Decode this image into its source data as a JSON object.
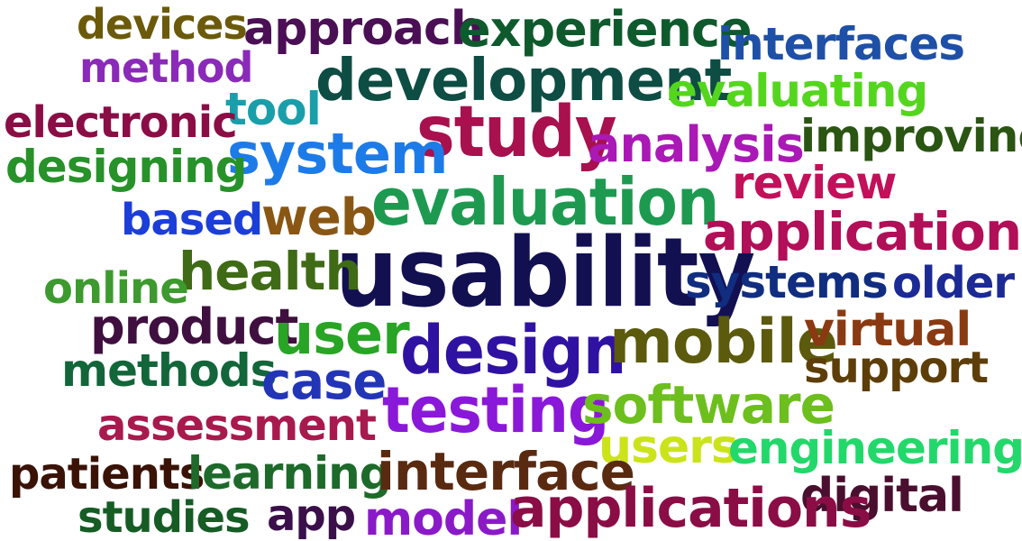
{
  "words": {
    "devices": {
      "text": "devices",
      "color": "#6b5a0a"
    },
    "approach": {
      "text": "approach",
      "color": "#4b0f55"
    },
    "experience": {
      "text": "experience",
      "color": "#0f5a2d"
    },
    "interfaces": {
      "text": "interfaces",
      "color": "#1e50a8"
    },
    "method": {
      "text": "method",
      "color": "#8a2ab8"
    },
    "development": {
      "text": "development",
      "color": "#0d4d43"
    },
    "evaluating": {
      "text": "evaluating",
      "color": "#55d61e"
    },
    "tool": {
      "text": "tool",
      "color": "#1a9faa"
    },
    "electronic": {
      "text": "electronic",
      "color": "#8a0d46"
    },
    "study": {
      "text": "study",
      "color": "#a8104e"
    },
    "analysis": {
      "text": "analysis",
      "color": "#aa18b6"
    },
    "improving": {
      "text": "improving",
      "color": "#2a5512"
    },
    "system": {
      "text": "system",
      "color": "#1d7be8"
    },
    "designing": {
      "text": "designing",
      "color": "#27922a"
    },
    "review": {
      "text": "review",
      "color": "#c2105a"
    },
    "evaluation": {
      "text": "evaluation",
      "color": "#1d9a50"
    },
    "based": {
      "text": "based",
      "color": "#1c3ed8"
    },
    "web": {
      "text": "web",
      "color": "#8a5614"
    },
    "application": {
      "text": "application",
      "color": "#b10f58"
    },
    "usability": {
      "text": "usability",
      "color": "#131052"
    },
    "health": {
      "text": "health",
      "color": "#3f6a16"
    },
    "online": {
      "text": "online",
      "color": "#3d9a2e"
    },
    "systems": {
      "text": "systems",
      "color": "#102d80"
    },
    "older": {
      "text": "older",
      "color": "#1b2a94"
    },
    "product": {
      "text": "product",
      "color": "#3f0f3f"
    },
    "user": {
      "text": "user",
      "color": "#28a525"
    },
    "design": {
      "text": "design",
      "color": "#3012a2"
    },
    "mobile": {
      "text": "mobile",
      "color": "#5c5a0c"
    },
    "virtual": {
      "text": "virtual",
      "color": "#8a3a12"
    },
    "methods": {
      "text": "methods",
      "color": "#12663a"
    },
    "case": {
      "text": "case",
      "color": "#2235b6"
    },
    "support": {
      "text": "support",
      "color": "#5e3e08"
    },
    "testing": {
      "text": "testing",
      "color": "#8a18d8"
    },
    "software": {
      "text": "software",
      "color": "#6cbf1c"
    },
    "assessment": {
      "text": "assessment",
      "color": "#a81a4e"
    },
    "users": {
      "text": "users",
      "color": "#cbe31a"
    },
    "engineering": {
      "text": "engineering",
      "color": "#22d86a"
    },
    "patients": {
      "text": "patients",
      "color": "#3a1206"
    },
    "learning": {
      "text": "learning",
      "color": "#1d6a2a"
    },
    "interface": {
      "text": "interface",
      "color": "#5a2a10"
    },
    "digital": {
      "text": "digital",
      "color": "#4a0f2e"
    },
    "studies": {
      "text": "studies",
      "color": "#165c25"
    },
    "app": {
      "text": "app",
      "color": "#3a0f4a"
    },
    "model": {
      "text": "model",
      "color": "#8a1ac8"
    },
    "applications": {
      "text": "applications",
      "color": "#8a0d46"
    }
  }
}
